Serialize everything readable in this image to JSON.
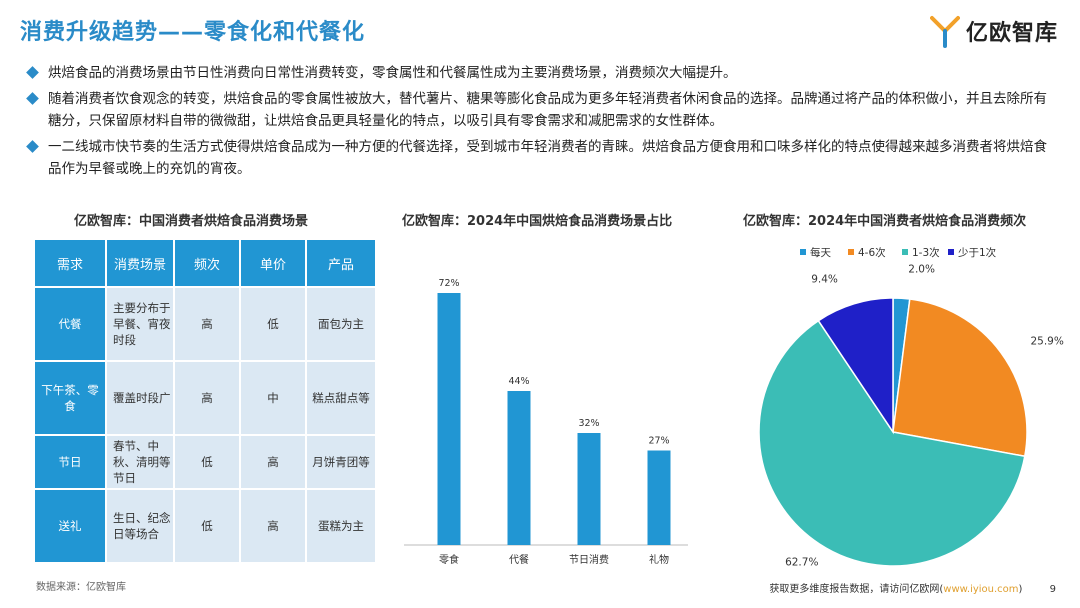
{
  "header": {
    "title": "消费升级趋势——零食化和代餐化",
    "logo_text": "亿欧智库"
  },
  "bullets": [
    "烘焙食品的消费场景由节日性消费向日常性消费转变，零食属性和代餐属性成为主要消费场景，消费频次大幅提升。",
    "随着消费者饮食观念的转变，烘焙食品的零食属性被放大，替代薯片、糖果等膨化食品成为更多年轻消费者休闲食品的选择。品牌通过将产品的体积做小，并且去除所有糖分，只保留原材料自带的微微甜，让烘焙食品更具轻量化的特点，以吸引具有零食需求和减肥需求的女性群体。",
    "一二线城市快节奏的生活方式使得烘焙食品成为一种方便的代餐选择，受到城市年轻消费者的青睐。烘焙食品方便食用和口味多样化的特点使得越来越多消费者将烘焙食品作为早餐或晚上的充饥的宵夜。"
  ],
  "table": {
    "title": "亿欧智库：中国消费者烘焙食品消费场景",
    "headers": [
      "需求",
      "消费场景",
      "频次",
      "单价",
      "产品"
    ],
    "rows": [
      [
        "代餐",
        "主要分布于早餐、宵夜时段",
        "高",
        "低",
        "面包为主"
      ],
      [
        "下午茶、零食",
        "覆盖时段广",
        "高",
        "中",
        "糕点甜点等"
      ],
      [
        "节日",
        "春节、中秋、清明等节日",
        "低",
        "高",
        "月饼青团等"
      ],
      [
        "送礼",
        "生日、纪念日等场合",
        "低",
        "高",
        "蛋糕为主"
      ]
    ]
  },
  "chart_data": [
    {
      "type": "bar",
      "title": "亿欧智库：2024年中国烘焙食品消费场景占比",
      "categories": [
        "零食",
        "代餐",
        "节日消费",
        "礼物"
      ],
      "values": [
        72,
        44,
        32,
        27
      ],
      "value_labels": [
        "72%",
        "44%",
        "32%",
        "27%"
      ],
      "ylim": [
        0,
        80
      ],
      "color": "#2196d3"
    },
    {
      "type": "pie",
      "title": "亿欧智库：2024年中国消费者烘焙食品消费频次",
      "legend_position": "top",
      "slices": [
        {
          "name": "每天",
          "value": 2.0,
          "label": "2.0%",
          "color": "#2196d3"
        },
        {
          "name": "4-6次",
          "value": 25.9,
          "label": "25.9%",
          "color": "#f28a22"
        },
        {
          "name": "1-3次",
          "value": 62.7,
          "label": "62.7%",
          "color": "#3bbdb6"
        },
        {
          "name": "少于1次",
          "value": 9.4,
          "label": "9.4%",
          "color": "#1f20c8"
        }
      ]
    }
  ],
  "footer": {
    "source": "数据来源：亿欧智库",
    "more_text": "获取更多维度报告数据，请访问亿欧网(",
    "link": "www.iyiou.com",
    "close_paren": ")",
    "page_number": "9"
  }
}
